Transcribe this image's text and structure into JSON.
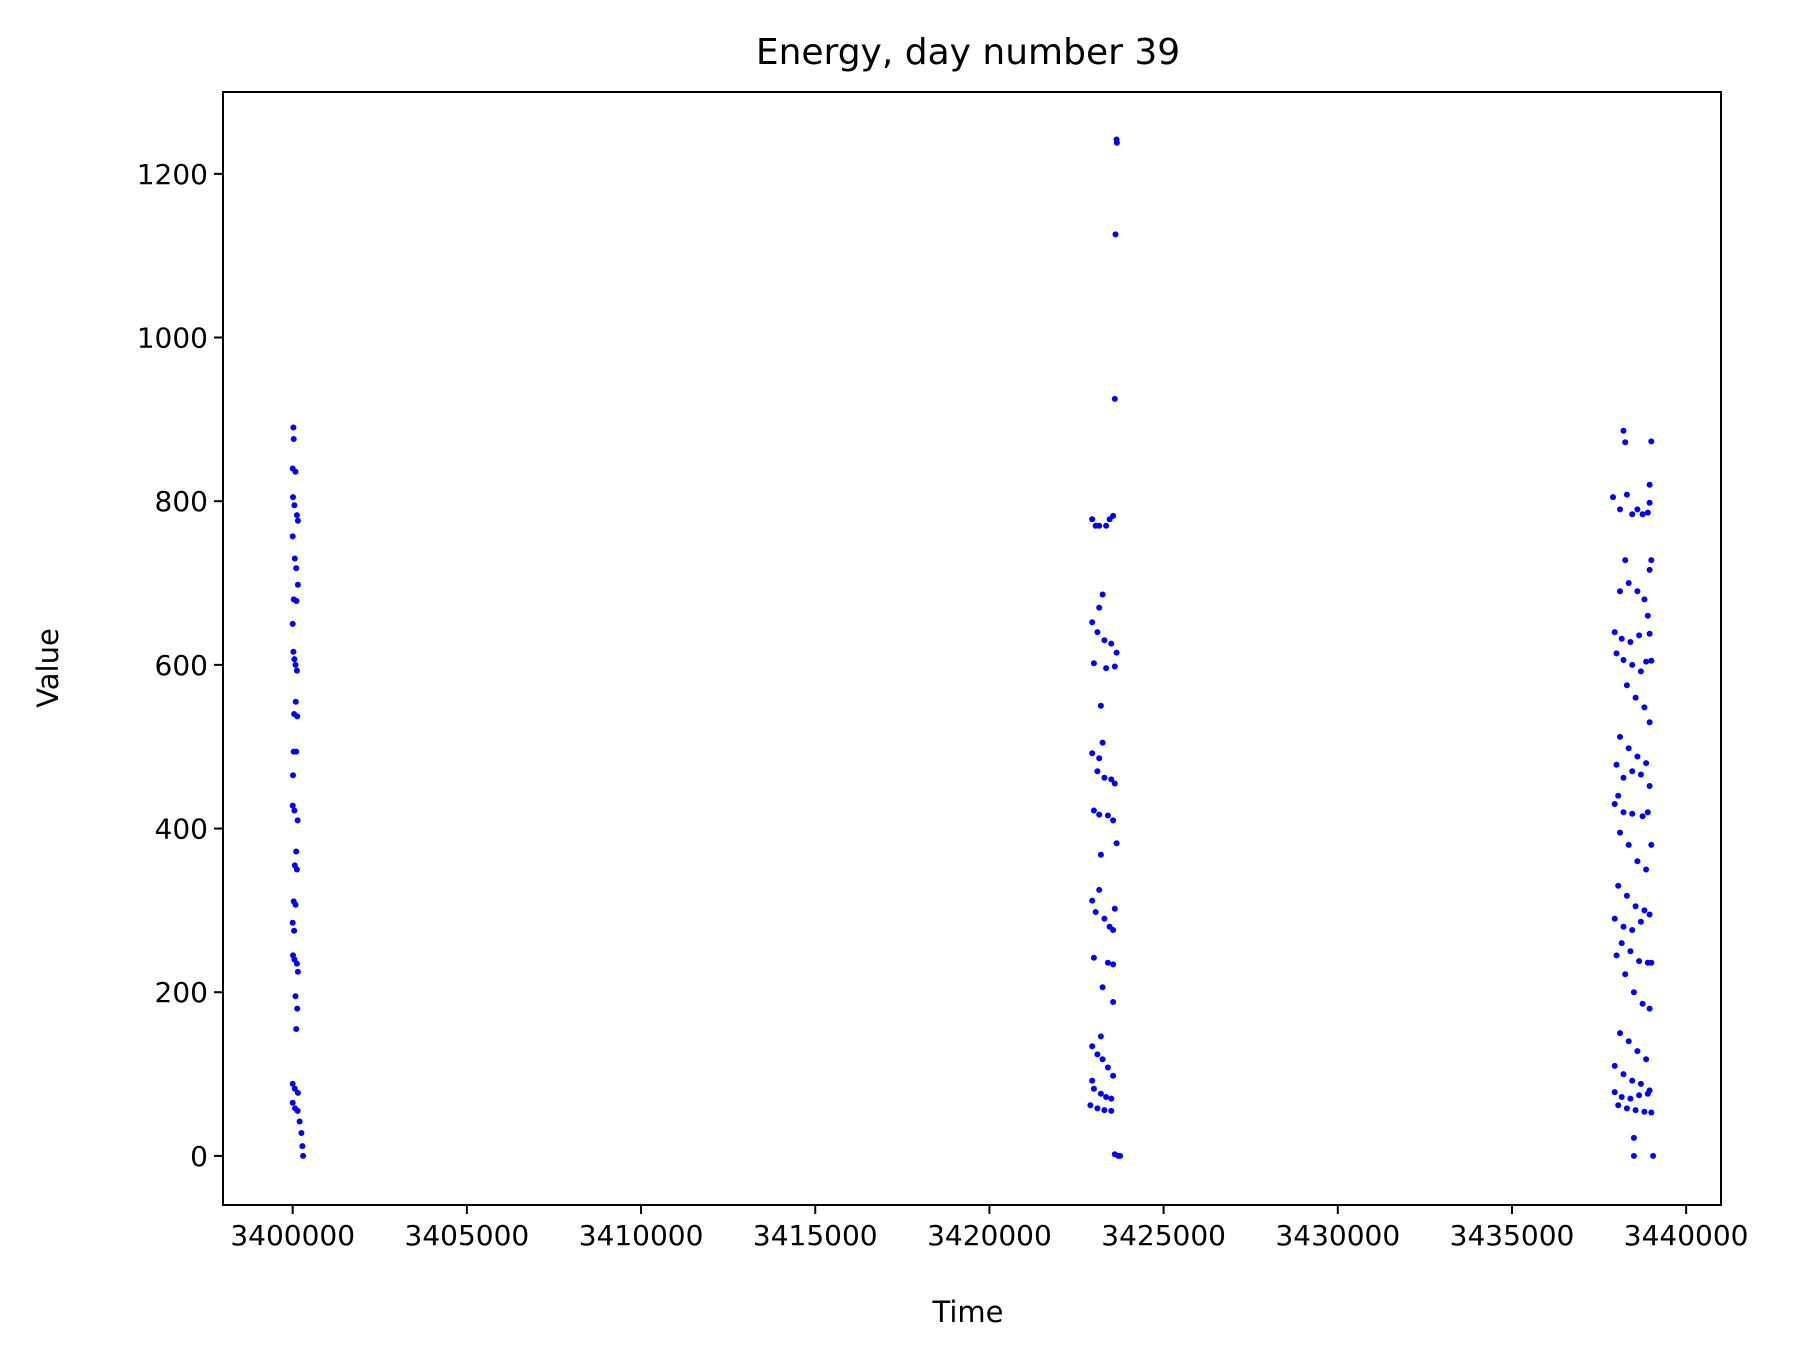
{
  "chart_data": {
    "type": "scatter",
    "title": "Energy, day number 39",
    "xlabel": "Time",
    "ylabel": "Value",
    "xlim": [
      3398000,
      3441000
    ],
    "ylim": [
      -60,
      1300
    ],
    "xticks": [
      3400000,
      3405000,
      3410000,
      3415000,
      3420000,
      3425000,
      3430000,
      3435000,
      3440000
    ],
    "xtick_labels": [
      "3400000",
      "3405000",
      "3410000",
      "3415000",
      "3420000",
      "3425000",
      "3430000",
      "3435000",
      "3440000"
    ],
    "yticks": [
      0,
      200,
      400,
      600,
      800,
      1000,
      1200
    ],
    "ytick_labels": [
      "0",
      "200",
      "400",
      "600",
      "800",
      "1000",
      "1200"
    ],
    "grid": false,
    "marker_color": "#0000ff",
    "series": [
      {
        "points": [
          [
            3400020,
            890
          ],
          [
            3400030,
            876
          ],
          [
            3400000,
            840
          ],
          [
            3400080,
            836
          ],
          [
            3400010,
            805
          ],
          [
            3400050,
            795
          ],
          [
            3400120,
            783
          ],
          [
            3400150,
            776
          ],
          [
            3400000,
            757
          ],
          [
            3400060,
            730
          ],
          [
            3400100,
            718
          ],
          [
            3400150,
            698
          ],
          [
            3400030,
            680
          ],
          [
            3400110,
            678
          ],
          [
            3400000,
            650
          ],
          [
            3400020,
            616
          ],
          [
            3400050,
            607
          ],
          [
            3400080,
            600
          ],
          [
            3400120,
            593
          ],
          [
            3400090,
            555
          ],
          [
            3400040,
            540
          ],
          [
            3400130,
            537
          ],
          [
            3400030,
            494
          ],
          [
            3400100,
            494
          ],
          [
            3400010,
            465
          ],
          [
            3400000,
            428
          ],
          [
            3400050,
            422
          ],
          [
            3400140,
            410
          ],
          [
            3400100,
            372
          ],
          [
            3400060,
            355
          ],
          [
            3400120,
            350
          ],
          [
            3400030,
            311
          ],
          [
            3400080,
            307
          ],
          [
            3400000,
            285
          ],
          [
            3400040,
            275
          ],
          [
            3400010,
            245
          ],
          [
            3400050,
            240
          ],
          [
            3400120,
            235
          ],
          [
            3400150,
            225
          ],
          [
            3400080,
            195
          ],
          [
            3400130,
            180
          ],
          [
            3400100,
            155
          ],
          [
            3400000,
            88
          ],
          [
            3400060,
            82
          ],
          [
            3400150,
            77
          ],
          [
            3400000,
            65
          ],
          [
            3400070,
            58
          ],
          [
            3400140,
            55
          ],
          [
            3400200,
            42
          ],
          [
            3400250,
            28
          ],
          [
            3400280,
            12
          ],
          [
            3400300,
            0
          ]
        ]
      },
      {
        "points": [
          [
            3423650,
            1242
          ],
          [
            3423660,
            1238
          ],
          [
            3423620,
            1126
          ],
          [
            3423600,
            925
          ],
          [
            3422950,
            778
          ],
          [
            3423050,
            770
          ],
          [
            3423150,
            770
          ],
          [
            3423350,
            770
          ],
          [
            3423450,
            778
          ],
          [
            3423550,
            782
          ],
          [
            3423250,
            686
          ],
          [
            3423150,
            670
          ],
          [
            3422950,
            652
          ],
          [
            3423100,
            640
          ],
          [
            3423300,
            630
          ],
          [
            3423500,
            626
          ],
          [
            3423650,
            615
          ],
          [
            3423000,
            602
          ],
          [
            3423350,
            596
          ],
          [
            3423600,
            598
          ],
          [
            3423200,
            550
          ],
          [
            3423250,
            505
          ],
          [
            3422950,
            492
          ],
          [
            3423150,
            486
          ],
          [
            3423100,
            470
          ],
          [
            3423300,
            462
          ],
          [
            3423500,
            460
          ],
          [
            3423600,
            455
          ],
          [
            3423000,
            422
          ],
          [
            3423150,
            417
          ],
          [
            3423400,
            416
          ],
          [
            3423550,
            410
          ],
          [
            3423650,
            382
          ],
          [
            3423200,
            368
          ],
          [
            3423150,
            325
          ],
          [
            3422950,
            312
          ],
          [
            3423050,
            298
          ],
          [
            3423300,
            290
          ],
          [
            3423450,
            280
          ],
          [
            3423600,
            302
          ],
          [
            3423550,
            276
          ],
          [
            3423000,
            242
          ],
          [
            3423400,
            236
          ],
          [
            3423550,
            234
          ],
          [
            3423250,
            206
          ],
          [
            3423550,
            188
          ],
          [
            3423200,
            146
          ],
          [
            3422950,
            134
          ],
          [
            3423100,
            124
          ],
          [
            3423250,
            118
          ],
          [
            3423400,
            108
          ],
          [
            3423550,
            98
          ],
          [
            3422950,
            92
          ],
          [
            3423000,
            82
          ],
          [
            3423200,
            76
          ],
          [
            3423350,
            72
          ],
          [
            3423500,
            70
          ],
          [
            3422900,
            62
          ],
          [
            3423100,
            58
          ],
          [
            3423300,
            56
          ],
          [
            3423500,
            55
          ],
          [
            3423600,
            2
          ],
          [
            3423700,
            0
          ],
          [
            3423750,
            0
          ]
        ]
      },
      {
        "points": [
          [
            3438200,
            886
          ],
          [
            3438250,
            872
          ],
          [
            3439000,
            873
          ],
          [
            3438950,
            820
          ],
          [
            3437900,
            805
          ],
          [
            3438300,
            808
          ],
          [
            3438600,
            790
          ],
          [
            3438900,
            786
          ],
          [
            3438100,
            790
          ],
          [
            3438450,
            784
          ],
          [
            3438750,
            784
          ],
          [
            3438950,
            798
          ],
          [
            3439000,
            728
          ],
          [
            3438950,
            716
          ],
          [
            3438250,
            728
          ],
          [
            3438350,
            700
          ],
          [
            3438600,
            690
          ],
          [
            3438800,
            680
          ],
          [
            3438900,
            660
          ],
          [
            3438100,
            690
          ],
          [
            3437950,
            640
          ],
          [
            3438150,
            632
          ],
          [
            3438400,
            628
          ],
          [
            3438650,
            636
          ],
          [
            3438950,
            638
          ],
          [
            3438000,
            614
          ],
          [
            3438200,
            606
          ],
          [
            3438450,
            600
          ],
          [
            3438700,
            592
          ],
          [
            3438850,
            604
          ],
          [
            3439000,
            605
          ],
          [
            3438300,
            575
          ],
          [
            3438550,
            560
          ],
          [
            3438800,
            548
          ],
          [
            3438950,
            530
          ],
          [
            3438100,
            512
          ],
          [
            3438350,
            498
          ],
          [
            3438600,
            488
          ],
          [
            3438850,
            480
          ],
          [
            3438000,
            478
          ],
          [
            3438200,
            462
          ],
          [
            3438450,
            470
          ],
          [
            3438700,
            466
          ],
          [
            3438950,
            452
          ],
          [
            3438050,
            440
          ],
          [
            3437950,
            430
          ],
          [
            3438200,
            420
          ],
          [
            3438450,
            418
          ],
          [
            3438750,
            415
          ],
          [
            3438900,
            420
          ],
          [
            3438100,
            395
          ],
          [
            3438350,
            380
          ],
          [
            3438600,
            360
          ],
          [
            3438850,
            350
          ],
          [
            3439000,
            380
          ],
          [
            3438050,
            330
          ],
          [
            3438300,
            318
          ],
          [
            3438550,
            305
          ],
          [
            3438800,
            300
          ],
          [
            3438950,
            295
          ],
          [
            3437950,
            290
          ],
          [
            3438200,
            280
          ],
          [
            3438450,
            276
          ],
          [
            3438700,
            286
          ],
          [
            3438150,
            260
          ],
          [
            3438400,
            250
          ],
          [
            3438650,
            238
          ],
          [
            3438900,
            236
          ],
          [
            3439000,
            236
          ],
          [
            3438000,
            245
          ],
          [
            3438250,
            222
          ],
          [
            3438500,
            200
          ],
          [
            3438750,
            186
          ],
          [
            3438950,
            180
          ],
          [
            3438100,
            150
          ],
          [
            3438350,
            140
          ],
          [
            3438600,
            128
          ],
          [
            3438850,
            118
          ],
          [
            3437950,
            110
          ],
          [
            3438200,
            100
          ],
          [
            3438450,
            92
          ],
          [
            3438700,
            88
          ],
          [
            3438950,
            80
          ],
          [
            3437950,
            78
          ],
          [
            3438150,
            72
          ],
          [
            3438400,
            70
          ],
          [
            3438650,
            74
          ],
          [
            3438900,
            76
          ],
          [
            3438050,
            62
          ],
          [
            3438300,
            58
          ],
          [
            3438550,
            56
          ],
          [
            3438800,
            54
          ],
          [
            3439000,
            53
          ],
          [
            3438500,
            22
          ],
          [
            3438500,
            0
          ],
          [
            3439050,
            0
          ]
        ]
      }
    ]
  }
}
